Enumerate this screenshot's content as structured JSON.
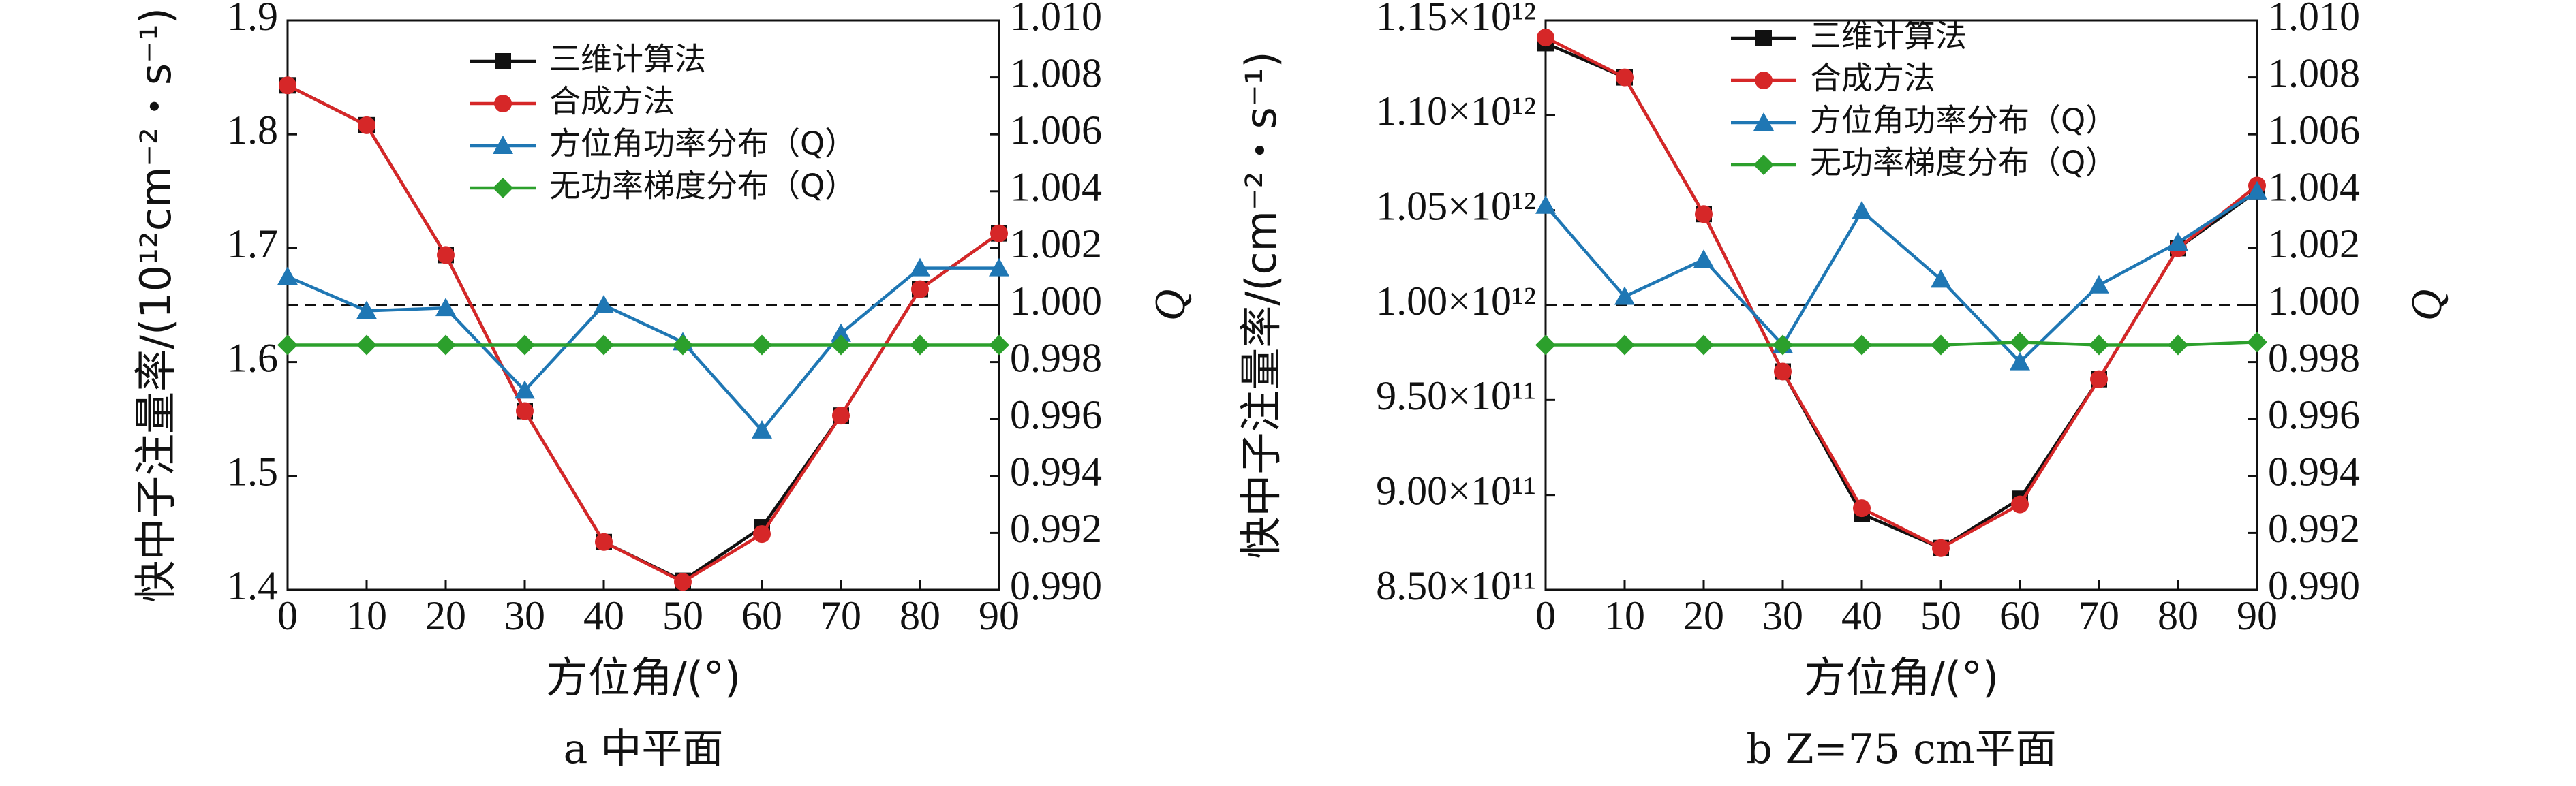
{
  "chart_data": [
    {
      "type": "line",
      "caption": "a  中平面",
      "xlabel": "方位角/(°)",
      "ylabel": "快中子注量率/(10¹²cm⁻²・s⁻¹)",
      "y2label": "Q",
      "x": [
        0,
        10,
        20,
        30,
        40,
        50,
        60,
        70,
        80,
        90
      ],
      "xticks": [
        "0",
        "10",
        "20",
        "30",
        "40",
        "50",
        "60",
        "70",
        "80",
        "90"
      ],
      "xlim": [
        0,
        90
      ],
      "ylim": [
        1.4,
        1.9
      ],
      "yticks": [
        "1.4",
        "1.5",
        "1.6",
        "1.7",
        "1.8",
        "1.9"
      ],
      "y2lim": [
        0.99,
        1.01
      ],
      "y2ticks": [
        "0.990",
        "0.992",
        "0.994",
        "0.996",
        "0.998",
        "1.000",
        "1.002",
        "1.004",
        "1.006",
        "1.008",
        "1.010"
      ],
      "reference_line": 1.0,
      "series": [
        {
          "name": "三维计算法",
          "axis": "left",
          "color": "#111111",
          "marker": "square",
          "values": [
            1.843,
            1.808,
            1.694,
            1.557,
            1.442,
            1.408,
            1.455,
            1.553,
            1.664,
            1.713
          ]
        },
        {
          "name": "合成方法",
          "axis": "left",
          "color": "#d62728",
          "marker": "circle",
          "values": [
            1.843,
            1.808,
            1.694,
            1.557,
            1.442,
            1.407,
            1.449,
            1.553,
            1.664,
            1.713
          ]
        },
        {
          "name": "方位角功率分布（Q）",
          "axis": "right",
          "color": "#1f77b4",
          "marker": "triangle",
          "values": [
            1.001,
            0.9998,
            0.9999,
            0.997,
            1.0,
            0.9987,
            0.9956,
            0.999,
            1.0013,
            1.0013
          ]
        },
        {
          "name": "无功率梯度分布（Q）",
          "axis": "right",
          "color": "#2ca02c",
          "marker": "diamond",
          "values": [
            0.9986,
            0.9986,
            0.9986,
            0.9986,
            0.9986,
            0.9986,
            0.9986,
            0.9986,
            0.9986,
            0.9986
          ]
        }
      ],
      "legend_position": "top-center"
    },
    {
      "type": "line",
      "caption": "b  Z=75 cm平面",
      "xlabel": "方位角/(°)",
      "ylabel": "快中子注量率/(cm⁻²・s⁻¹)",
      "y2label": "Q",
      "x": [
        0,
        10,
        20,
        30,
        40,
        50,
        60,
        70,
        80,
        90
      ],
      "xticks": [
        "0",
        "10",
        "20",
        "30",
        "40",
        "50",
        "60",
        "70",
        "80",
        "90"
      ],
      "xlim": [
        0,
        90
      ],
      "ylim": [
        850000000000.0,
        1150000000000.0
      ],
      "yticks": [
        "8.50×10¹¹",
        "9.00×10¹¹",
        "9.50×10¹¹",
        "1.00×10¹²",
        "1.05×10¹²",
        "1.10×10¹²",
        "1.15×10¹²"
      ],
      "y2lim": [
        0.99,
        1.01
      ],
      "y2ticks": [
        "0.990",
        "0.992",
        "0.994",
        "0.996",
        "0.998",
        "1.000",
        "1.002",
        "1.004",
        "1.006",
        "1.008",
        "1.010"
      ],
      "reference_line": 1.0,
      "series": [
        {
          "name": "三维计算法",
          "axis": "left",
          "color": "#111111",
          "marker": "square",
          "values": [
            1138000000000.0,
            1120000000000.0,
            1048000000000.0,
            965000000000.0,
            890000000000.0,
            872000000000.0,
            898000000000.0,
            961000000000.0,
            1030000000000.0,
            1060000000000.0
          ]
        },
        {
          "name": "合成方法",
          "axis": "left",
          "color": "#d62728",
          "marker": "circle",
          "values": [
            1141000000000.0,
            1120000000000.0,
            1048000000000.0,
            965000000000.0,
            893000000000.0,
            872000000000.0,
            895000000000.0,
            961000000000.0,
            1030000000000.0,
            1063000000000.0
          ]
        },
        {
          "name": "方位角功率分布（Q）",
          "axis": "right",
          "color": "#1f77b4",
          "marker": "triangle",
          "values": [
            1.0035,
            1.0003,
            1.0016,
            0.9986,
            1.0033,
            1.0009,
            0.998,
            1.0007,
            1.0022,
            1.004
          ]
        },
        {
          "name": "无功率梯度分布（Q）",
          "axis": "right",
          "color": "#2ca02c",
          "marker": "diamond",
          "values": [
            0.9986,
            0.9986,
            0.9986,
            0.9986,
            0.9986,
            0.9986,
            0.9987,
            0.9986,
            0.9986,
            0.9987
          ]
        }
      ],
      "legend_position": "top-center"
    }
  ]
}
